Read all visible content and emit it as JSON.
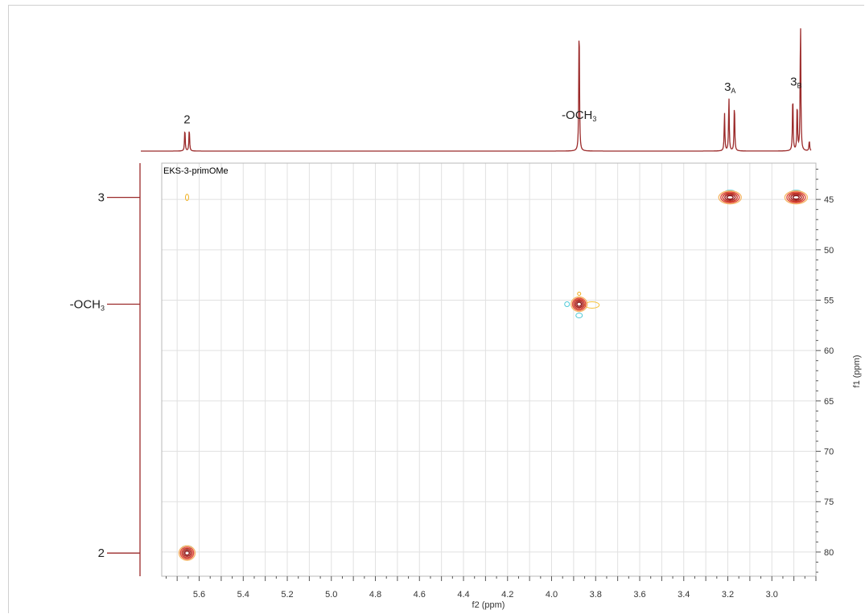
{
  "chart_data": {
    "type": "hsqc-2d-nmr",
    "dataset_label": "EKS-3-primOMe",
    "x_axis": {
      "label": "f2 (ppm)",
      "range": [
        5.77,
        2.8
      ],
      "reversed": true,
      "ticks": [
        5.6,
        5.4,
        5.2,
        5.0,
        4.8,
        4.6,
        4.4,
        4.2,
        4.0,
        3.8,
        3.6,
        3.4,
        3.2,
        3.0
      ],
      "tick_labels": [
        "5.6",
        "5.4",
        "5.2",
        "5.0",
        "4.8",
        "4.6",
        "4.4",
        "4.2",
        "4.0",
        "3.8",
        "3.6",
        "3.4",
        "3.2",
        "3.0"
      ]
    },
    "y_axis": {
      "label": "f1 (ppm)",
      "range": [
        41.4,
        82.4
      ],
      "reversed": true,
      "position": "right",
      "ticks": [
        45,
        50,
        55,
        60,
        65,
        70,
        75,
        80
      ],
      "tick_labels": [
        "45",
        "50",
        "55",
        "60",
        "65",
        "70",
        "75",
        "80"
      ]
    },
    "grid": true,
    "cross_peaks": [
      {
        "f2": 5.655,
        "f1": 80.1,
        "assignment": "2",
        "intensity": "strong"
      },
      {
        "f2": 3.875,
        "f1": 55.4,
        "assignment": "-OCH3",
        "intensity": "strong"
      },
      {
        "f2": 3.19,
        "f1": 44.8,
        "assignment": "3A",
        "intensity": "strong"
      },
      {
        "f2": 2.89,
        "f1": 44.8,
        "assignment": "3B",
        "intensity": "strong"
      },
      {
        "f2": 5.655,
        "f1": 44.8,
        "assignment": "",
        "intensity": "weak"
      }
    ],
    "proton_projection": {
      "peaks": [
        {
          "ppm": 5.665,
          "height": 0.17
        },
        {
          "ppm": 5.645,
          "height": 0.17
        },
        {
          "ppm": 3.875,
          "height": 1.0
        },
        {
          "ppm": 3.215,
          "height": 0.29
        },
        {
          "ppm": 3.195,
          "height": 0.41
        },
        {
          "ppm": 3.17,
          "height": 0.36
        },
        {
          "ppm": 2.905,
          "height": 0.43
        },
        {
          "ppm": 2.885,
          "height": 0.36
        },
        {
          "ppm": 2.87,
          "height": 1.0
        },
        {
          "ppm": 2.83,
          "height": 0.08
        }
      ],
      "labels": [
        {
          "text": "2",
          "sub": "",
          "ppm": 5.655
        },
        {
          "text": "-OCH",
          "sub": "3",
          "ppm": 3.875
        },
        {
          "text": "3",
          "sub": "A",
          "ppm": 3.19
        },
        {
          "text": "3",
          "sub": "B",
          "ppm": 2.89
        }
      ]
    },
    "carbon_projection": {
      "labels": [
        {
          "text": "3",
          "sub": "",
          "ppm": 44.8
        },
        {
          "text": "-OCH",
          "sub": "3",
          "ppm": 55.4
        },
        {
          "text": "2",
          "sub": "",
          "ppm": 80.1
        }
      ]
    }
  }
}
